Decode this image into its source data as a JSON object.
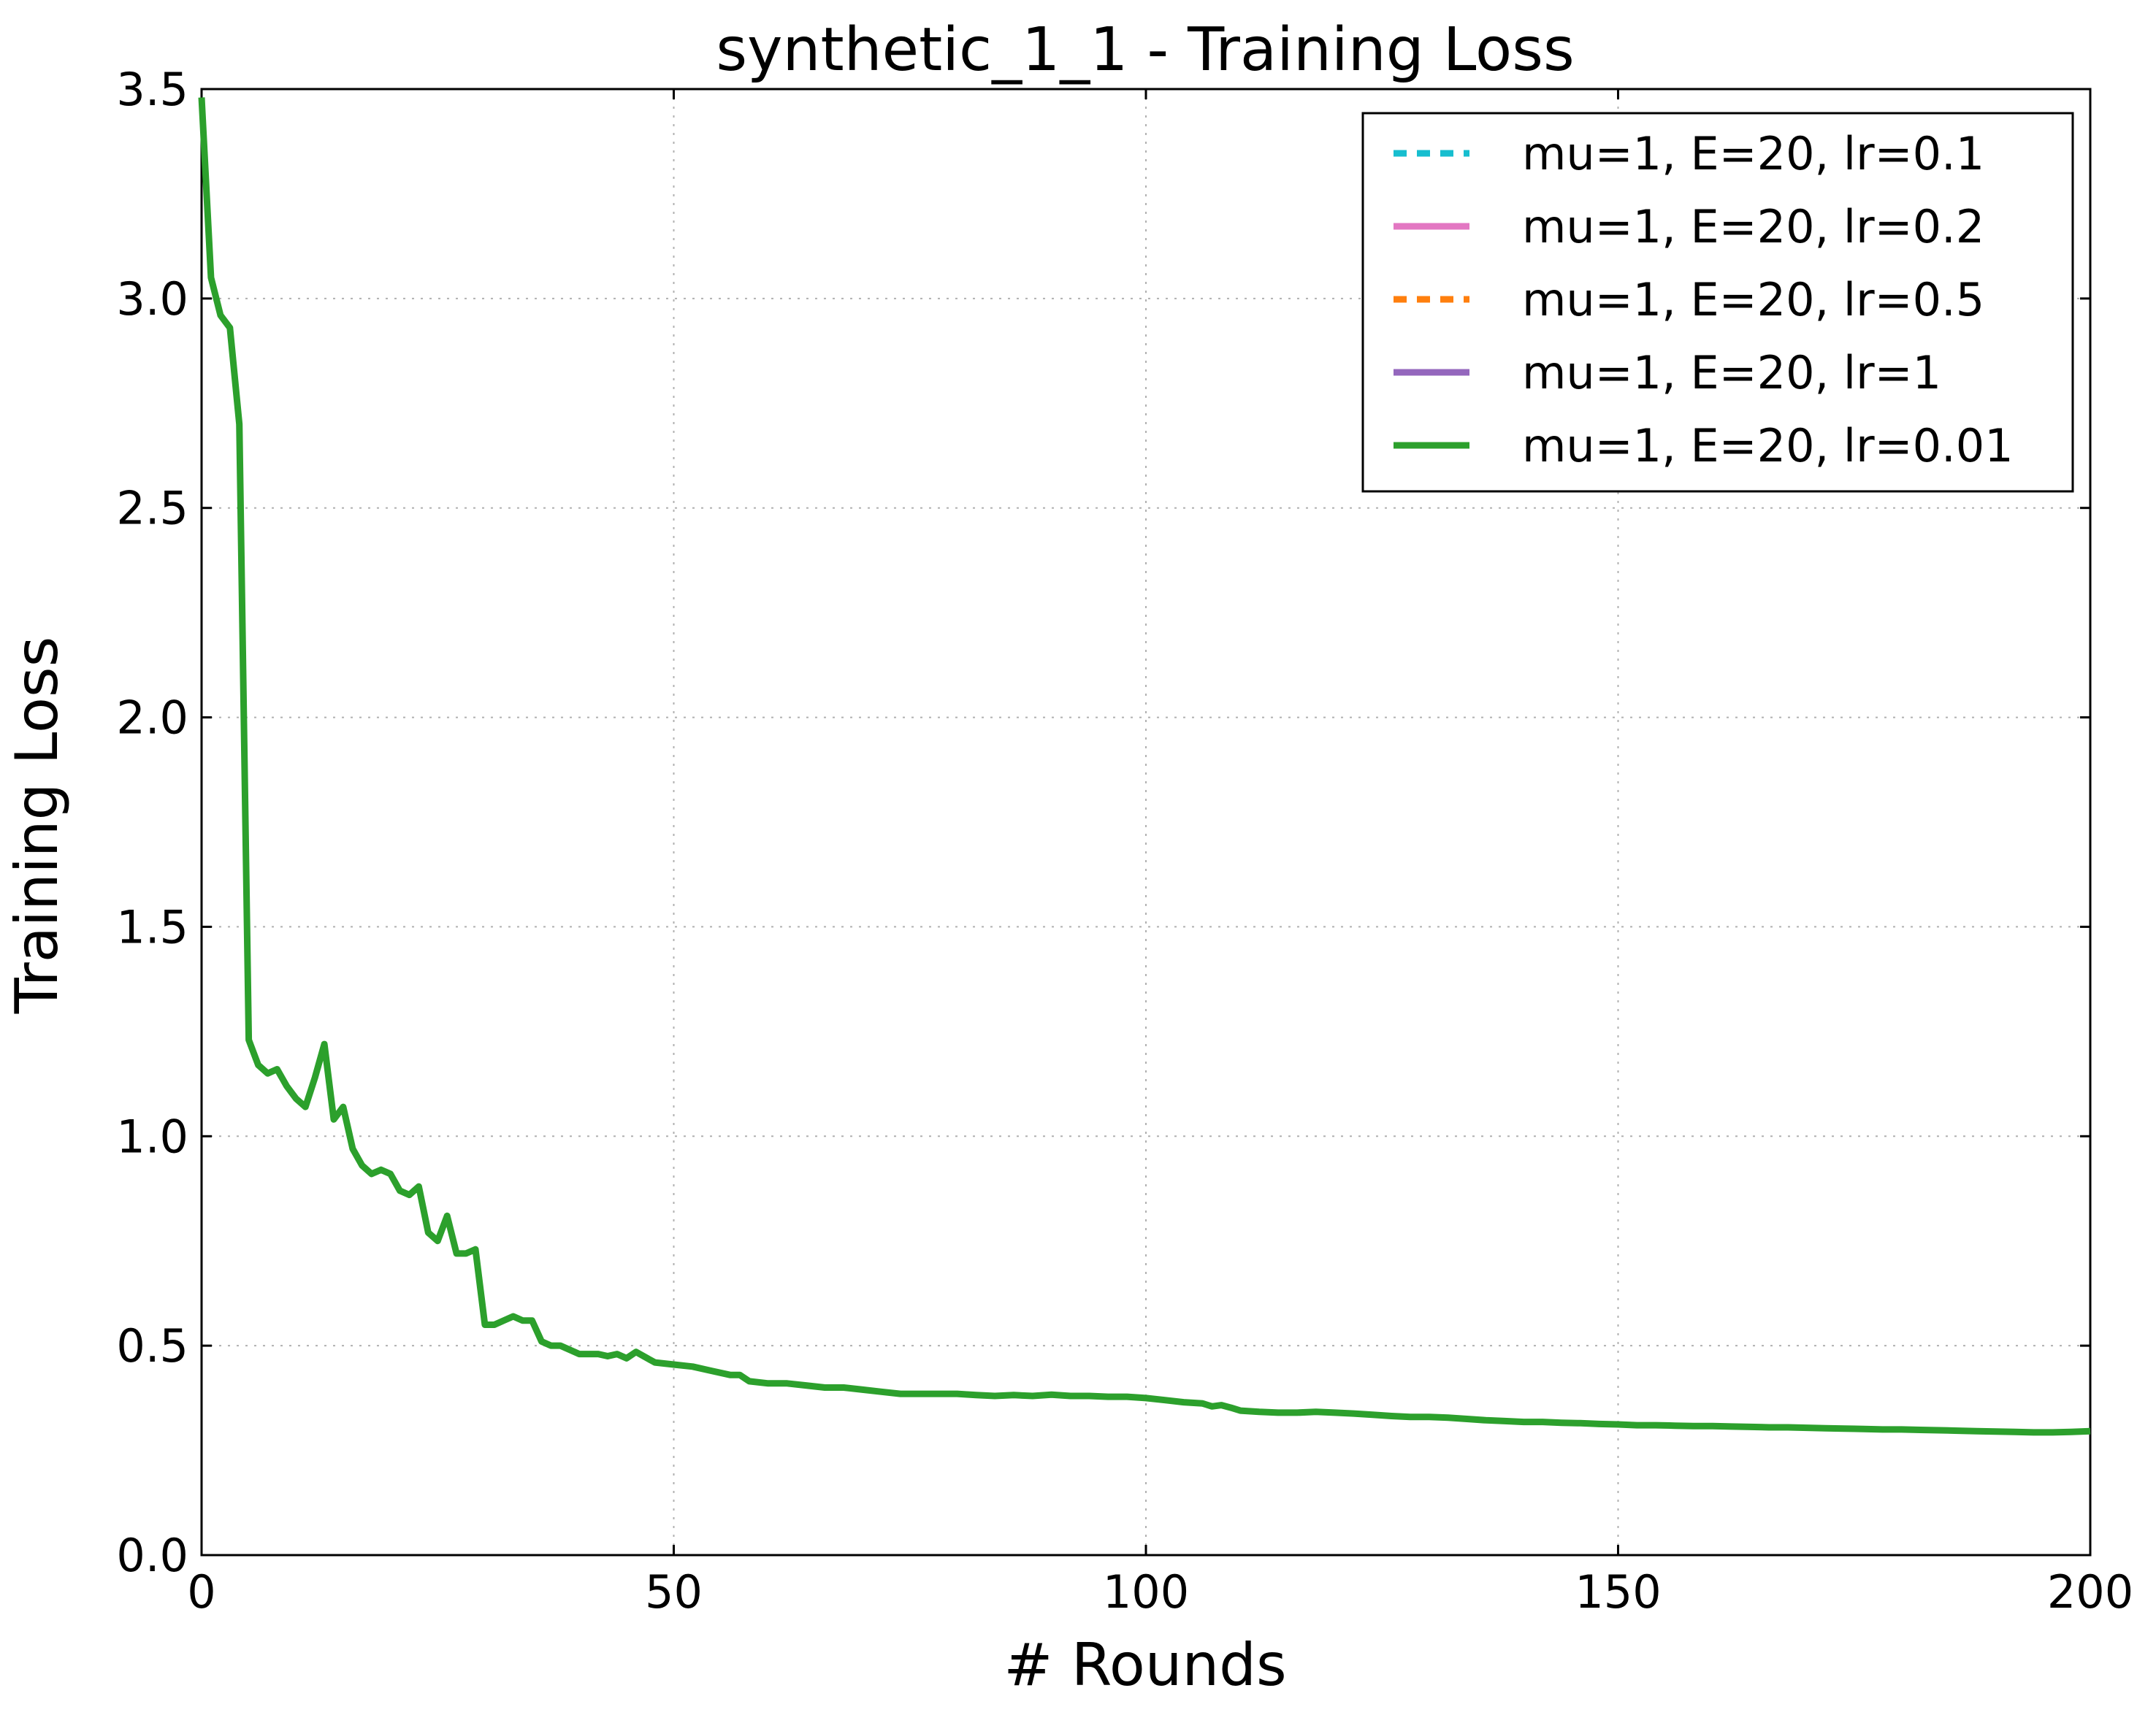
{
  "chart_data": {
    "type": "line",
    "title": "synthetic_1_1 - Training Loss",
    "xlabel": "# Rounds",
    "ylabel": "Training Loss",
    "xlim": [
      0,
      200
    ],
    "ylim": [
      0.0,
      3.5
    ],
    "xticks": [
      "0",
      "50",
      "100",
      "150",
      "200"
    ],
    "yticks": [
      "0.0",
      "0.5",
      "1.0",
      "1.5",
      "2.0",
      "2.5",
      "3.0",
      "3.5"
    ],
    "grid": true,
    "legend_position": "top-right",
    "series": [
      {
        "name": "mu=1, E=20, lr=0.1",
        "color": "#17becf",
        "dash": "dashed",
        "values": []
      },
      {
        "name": "mu=1, E=20, lr=0.2",
        "color": "#e377c2",
        "dash": "solid",
        "values": []
      },
      {
        "name": "mu=1, E=20, lr=0.5",
        "color": "#ff7f0e",
        "dash": "dashed",
        "values": []
      },
      {
        "name": "mu=1, E=20, lr=1",
        "color": "#9467bd",
        "dash": "solid",
        "values": []
      },
      {
        "name": "mu=1, E=20, lr=0.01",
        "color": "#2ca02c",
        "dash": "solid",
        "points": [
          [
            0,
            3.48
          ],
          [
            1,
            3.05
          ],
          [
            2,
            2.96
          ],
          [
            3,
            2.93
          ],
          [
            4,
            2.7
          ],
          [
            5,
            1.23
          ],
          [
            6,
            1.17
          ],
          [
            7,
            1.15
          ],
          [
            8,
            1.16
          ],
          [
            9,
            1.12
          ],
          [
            10,
            1.09
          ],
          [
            11,
            1.07
          ],
          [
            12,
            1.14
          ],
          [
            13,
            1.22
          ],
          [
            14,
            1.04
          ],
          [
            15,
            1.07
          ],
          [
            16,
            0.97
          ],
          [
            17,
            0.93
          ],
          [
            18,
            0.91
          ],
          [
            19,
            0.92
          ],
          [
            20,
            0.91
          ],
          [
            21,
            0.87
          ],
          [
            22,
            0.86
          ],
          [
            23,
            0.88
          ],
          [
            24,
            0.77
          ],
          [
            25,
            0.75
          ],
          [
            26,
            0.81
          ],
          [
            27,
            0.72
          ],
          [
            28,
            0.72
          ],
          [
            29,
            0.73
          ],
          [
            30,
            0.55
          ],
          [
            31,
            0.55
          ],
          [
            32,
            0.56
          ],
          [
            33,
            0.57
          ],
          [
            34,
            0.56
          ],
          [
            35,
            0.56
          ],
          [
            36,
            0.51
          ],
          [
            37,
            0.5
          ],
          [
            38,
            0.5
          ],
          [
            39,
            0.49
          ],
          [
            40,
            0.48
          ],
          [
            42,
            0.48
          ],
          [
            43,
            0.475
          ],
          [
            44,
            0.48
          ],
          [
            45,
            0.47
          ],
          [
            46,
            0.485
          ],
          [
            48,
            0.46
          ],
          [
            50,
            0.455
          ],
          [
            52,
            0.45
          ],
          [
            54,
            0.44
          ],
          [
            56,
            0.43
          ],
          [
            57,
            0.43
          ],
          [
            58,
            0.415
          ],
          [
            60,
            0.41
          ],
          [
            62,
            0.41
          ],
          [
            64,
            0.405
          ],
          [
            66,
            0.4
          ],
          [
            68,
            0.4
          ],
          [
            70,
            0.395
          ],
          [
            72,
            0.39
          ],
          [
            74,
            0.385
          ],
          [
            76,
            0.385
          ],
          [
            78,
            0.385
          ],
          [
            80,
            0.385
          ],
          [
            82,
            0.382
          ],
          [
            84,
            0.38
          ],
          [
            86,
            0.382
          ],
          [
            88,
            0.38
          ],
          [
            90,
            0.383
          ],
          [
            92,
            0.38
          ],
          [
            94,
            0.38
          ],
          [
            96,
            0.378
          ],
          [
            98,
            0.378
          ],
          [
            100,
            0.375
          ],
          [
            102,
            0.37
          ],
          [
            104,
            0.365
          ],
          [
            106,
            0.362
          ],
          [
            107,
            0.355
          ],
          [
            108,
            0.358
          ],
          [
            109,
            0.352
          ],
          [
            110,
            0.345
          ],
          [
            112,
            0.342
          ],
          [
            114,
            0.34
          ],
          [
            116,
            0.34
          ],
          [
            118,
            0.342
          ],
          [
            120,
            0.34
          ],
          [
            122,
            0.338
          ],
          [
            124,
            0.335
          ],
          [
            126,
            0.332
          ],
          [
            128,
            0.33
          ],
          [
            130,
            0.33
          ],
          [
            132,
            0.328
          ],
          [
            134,
            0.325
          ],
          [
            136,
            0.322
          ],
          [
            138,
            0.32
          ],
          [
            140,
            0.318
          ],
          [
            142,
            0.318
          ],
          [
            144,
            0.316
          ],
          [
            146,
            0.315
          ],
          [
            148,
            0.313
          ],
          [
            150,
            0.312
          ],
          [
            152,
            0.31
          ],
          [
            154,
            0.31
          ],
          [
            156,
            0.309
          ],
          [
            158,
            0.308
          ],
          [
            160,
            0.308
          ],
          [
            162,
            0.307
          ],
          [
            164,
            0.306
          ],
          [
            166,
            0.305
          ],
          [
            168,
            0.305
          ],
          [
            170,
            0.304
          ],
          [
            172,
            0.303
          ],
          [
            174,
            0.302
          ],
          [
            176,
            0.301
          ],
          [
            178,
            0.3
          ],
          [
            180,
            0.3
          ],
          [
            182,
            0.299
          ],
          [
            184,
            0.298
          ],
          [
            186,
            0.297
          ],
          [
            188,
            0.296
          ],
          [
            190,
            0.295
          ],
          [
            192,
            0.294
          ],
          [
            194,
            0.293
          ],
          [
            196,
            0.293
          ],
          [
            198,
            0.294
          ],
          [
            200,
            0.296
          ]
        ]
      }
    ]
  }
}
